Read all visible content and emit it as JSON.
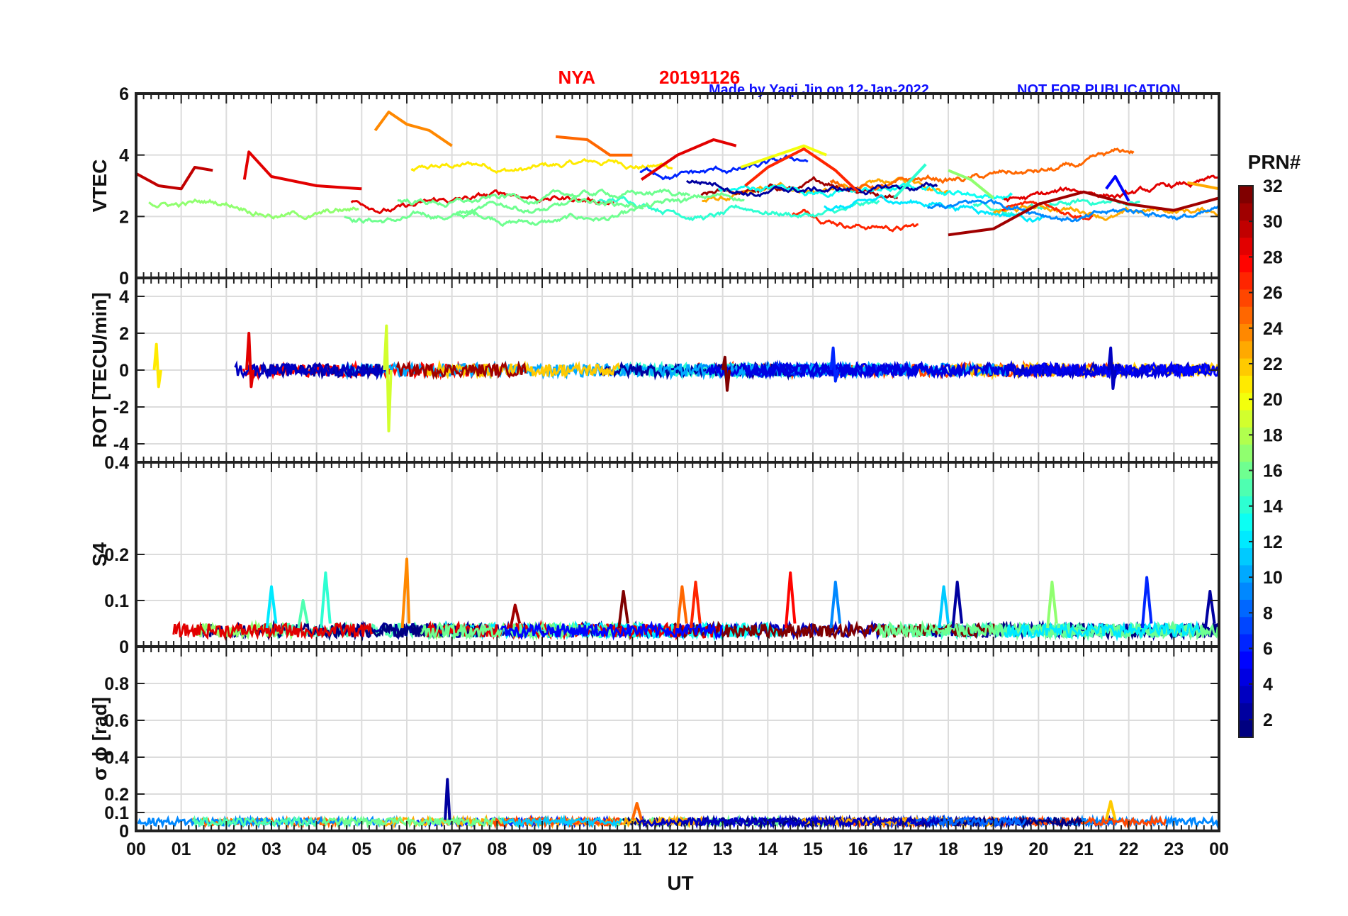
{
  "chart_data": {
    "type": "line",
    "station": "NYA",
    "date": "20191126",
    "credit": "Made by Yaqi Jin on 12-Jan-2022",
    "notice": "NOT FOR PUBLICATION",
    "xlabel": "UT",
    "x_ticks": [
      "00",
      "01",
      "02",
      "03",
      "04",
      "05",
      "06",
      "07",
      "08",
      "09",
      "10",
      "11",
      "12",
      "13",
      "14",
      "15",
      "16",
      "17",
      "18",
      "19",
      "20",
      "21",
      "22",
      "23",
      "00"
    ],
    "xlim_hours": [
      0,
      24
    ],
    "colorbar": {
      "title": "PRN#",
      "range": [
        1,
        32
      ],
      "ticks": [
        "2",
        "4",
        "6",
        "8",
        "10",
        "12",
        "14",
        "16",
        "18",
        "20",
        "22",
        "24",
        "26",
        "28",
        "30",
        "32"
      ]
    },
    "panels": [
      {
        "id": "vtec",
        "ylabel": "VTEC",
        "ylim": [
          0,
          6
        ],
        "yticks": [
          0,
          2,
          4,
          6
        ],
        "ytick_labels": [
          "0",
          "2",
          "4",
          "6"
        ],
        "series": [
          {
            "prn": 30,
            "points": [
              [
                0,
                3.4
              ],
              [
                0.5,
                3.0
              ],
              [
                1.0,
                2.9
              ],
              [
                1.3,
                3.6
              ],
              [
                1.7,
                3.5
              ]
            ]
          },
          {
            "prn": 29,
            "points": [
              [
                2.4,
                3.2
              ],
              [
                2.5,
                4.1
              ],
              [
                3.0,
                3.3
              ],
              [
                4.0,
                3.0
              ],
              [
                5.0,
                2.9
              ]
            ]
          },
          {
            "prn": 24,
            "points": [
              [
                5.3,
                4.8
              ],
              [
                5.6,
                5.4
              ],
              [
                6.0,
                5.0
              ],
              [
                6.5,
                4.8
              ],
              [
                7.0,
                4.3
              ]
            ]
          },
          {
            "prn": 25,
            "points": [
              [
                9.3,
                4.6
              ],
              [
                10.0,
                4.5
              ],
              [
                10.5,
                4.0
              ],
              [
                11.0,
                4.0
              ]
            ]
          },
          {
            "prn": 29,
            "points": [
              [
                11.2,
                3.2
              ],
              [
                12.0,
                4.0
              ],
              [
                12.8,
                4.5
              ],
              [
                13.3,
                4.3
              ]
            ]
          },
          {
            "prn": 27,
            "points": [
              [
                13.5,
                3.0
              ],
              [
                14.0,
                3.6
              ],
              [
                14.8,
                4.2
              ],
              [
                15.5,
                3.5
              ],
              [
                16.0,
                2.8
              ]
            ]
          },
          {
            "prn": 20,
            "points": [
              [
                13.4,
                3.6
              ],
              [
                14.0,
                3.9
              ],
              [
                14.8,
                4.3
              ],
              [
                15.3,
                4.0
              ]
            ]
          },
          {
            "prn": 14,
            "points": [
              [
                16.8,
                2.6
              ],
              [
                17.5,
                3.7
              ]
            ]
          },
          {
            "prn": 17,
            "points": [
              [
                18.0,
                3.5
              ],
              [
                18.5,
                3.2
              ],
              [
                19.0,
                2.6
              ]
            ]
          },
          {
            "prn": 31,
            "points": [
              [
                18.0,
                1.4
              ],
              [
                19.0,
                1.6
              ],
              [
                20.0,
                2.4
              ],
              [
                21.0,
                2.8
              ],
              [
                22.0,
                2.4
              ],
              [
                23.0,
                2.2
              ],
              [
                24.0,
                2.6
              ]
            ]
          },
          {
            "prn": 5,
            "points": [
              [
                21.5,
                2.9
              ],
              [
                21.7,
                3.3
              ],
              [
                22.0,
                2.5
              ]
            ]
          },
          {
            "prn": 23,
            "points": [
              [
                23.3,
                3.1
              ],
              [
                24.0,
                2.9
              ]
            ]
          }
        ]
      },
      {
        "id": "rot",
        "ylabel": "ROT [TECU/min]",
        "ylim": [
          -5,
          5
        ],
        "yticks": [
          -4,
          -2,
          0,
          2,
          4
        ],
        "ytick_labels": [
          "-4",
          "-2",
          "0",
          "2",
          "4"
        ],
        "series": [
          {
            "prn": 19,
            "points": [
              [
                5.5,
                0
              ],
              [
                5.55,
                2.4
              ],
              [
                5.6,
                -3.3
              ],
              [
                5.65,
                0
              ]
            ]
          },
          {
            "prn": 29,
            "points": [
              [
                2.45,
                0
              ],
              [
                2.5,
                2.0
              ],
              [
                2.55,
                -0.9
              ],
              [
                2.6,
                0
              ]
            ]
          },
          {
            "prn": 21,
            "points": [
              [
                0.4,
                0
              ],
              [
                0.45,
                1.4
              ],
              [
                0.5,
                -0.9
              ],
              [
                0.55,
                0
              ]
            ]
          },
          {
            "prn": 6,
            "points": [
              [
                15.4,
                0
              ],
              [
                15.45,
                1.2
              ],
              [
                15.5,
                -0.6
              ],
              [
                15.55,
                0
              ]
            ]
          },
          {
            "prn": 3,
            "points": [
              [
                21.55,
                0
              ],
              [
                21.6,
                1.2
              ],
              [
                21.65,
                -1.0
              ],
              [
                21.7,
                0
              ]
            ]
          },
          {
            "prn": 32,
            "points": [
              [
                13.0,
                0
              ],
              [
                13.05,
                0.7
              ],
              [
                13.1,
                -1.1
              ],
              [
                13.15,
                0
              ]
            ]
          }
        ]
      },
      {
        "id": "s4",
        "ylabel": "S4",
        "ylim": [
          0,
          0.4
        ],
        "yticks": [
          0,
          0.1,
          0.2,
          0.4
        ],
        "ytick_labels": [
          "0",
          "0.1",
          "0.2",
          "0.4"
        ],
        "series": [
          {
            "prn": 12,
            "points": [
              [
                2.9,
                0.04
              ],
              [
                3.0,
                0.13
              ],
              [
                3.1,
                0.05
              ]
            ]
          },
          {
            "prn": 15,
            "points": [
              [
                3.6,
                0.04
              ],
              [
                3.7,
                0.1
              ],
              [
                3.8,
                0.05
              ]
            ]
          },
          {
            "prn": 14,
            "points": [
              [
                4.1,
                0.04
              ],
              [
                4.2,
                0.16
              ],
              [
                4.3,
                0.05
              ]
            ]
          },
          {
            "prn": 24,
            "points": [
              [
                5.9,
                0.04
              ],
              [
                6.0,
                0.19
              ],
              [
                6.05,
                0.05
              ]
            ]
          },
          {
            "prn": 31,
            "points": [
              [
                8.3,
                0.04
              ],
              [
                8.4,
                0.09
              ],
              [
                8.5,
                0.05
              ]
            ]
          },
          {
            "prn": 32,
            "points": [
              [
                10.7,
                0.04
              ],
              [
                10.8,
                0.12
              ],
              [
                10.9,
                0.05
              ]
            ]
          },
          {
            "prn": 25,
            "points": [
              [
                12.0,
                0.04
              ],
              [
                12.1,
                0.13
              ],
              [
                12.2,
                0.05
              ]
            ]
          },
          {
            "prn": 27,
            "points": [
              [
                12.3,
                0.04
              ],
              [
                12.4,
                0.14
              ],
              [
                12.5,
                0.05
              ]
            ]
          },
          {
            "prn": 28,
            "points": [
              [
                14.4,
                0.04
              ],
              [
                14.5,
                0.16
              ],
              [
                14.6,
                0.05
              ]
            ]
          },
          {
            "prn": 9,
            "points": [
              [
                15.4,
                0.04
              ],
              [
                15.5,
                0.14
              ],
              [
                15.6,
                0.05
              ]
            ]
          },
          {
            "prn": 11,
            "points": [
              [
                17.8,
                0.04
              ],
              [
                17.9,
                0.13
              ],
              [
                18.0,
                0.05
              ]
            ]
          },
          {
            "prn": 2,
            "points": [
              [
                18.1,
                0.04
              ],
              [
                18.2,
                0.14
              ],
              [
                18.3,
                0.05
              ]
            ]
          },
          {
            "prn": 17,
            "points": [
              [
                20.2,
                0.04
              ],
              [
                20.3,
                0.14
              ],
              [
                20.4,
                0.05
              ]
            ]
          },
          {
            "prn": 6,
            "points": [
              [
                22.3,
                0.04
              ],
              [
                22.4,
                0.15
              ],
              [
                22.5,
                0.05
              ]
            ]
          },
          {
            "prn": 2,
            "points": [
              [
                23.7,
                0.04
              ],
              [
                23.8,
                0.12
              ],
              [
                23.9,
                0.05
              ]
            ]
          }
        ]
      },
      {
        "id": "sigma_phi",
        "ylabel": "σ ϕ [rad]",
        "ylim": [
          0,
          1
        ],
        "yticks": [
          0,
          0.1,
          0.2,
          0.4,
          0.6,
          0.8
        ],
        "ytick_labels": [
          "0",
          "0.1",
          "0.2",
          "0.4",
          "0.6",
          "0.8"
        ],
        "series": [
          {
            "prn": 2,
            "points": [
              [
                6.85,
                0.06
              ],
              [
                6.9,
                0.28
              ],
              [
                6.95,
                0.06
              ]
            ]
          },
          {
            "prn": 25,
            "points": [
              [
                11.0,
                0.06
              ],
              [
                11.1,
                0.15
              ],
              [
                11.2,
                0.06
              ]
            ]
          },
          {
            "prn": 22,
            "points": [
              [
                21.5,
                0.06
              ],
              [
                21.6,
                0.16
              ],
              [
                21.7,
                0.06
              ]
            ]
          }
        ]
      }
    ]
  }
}
